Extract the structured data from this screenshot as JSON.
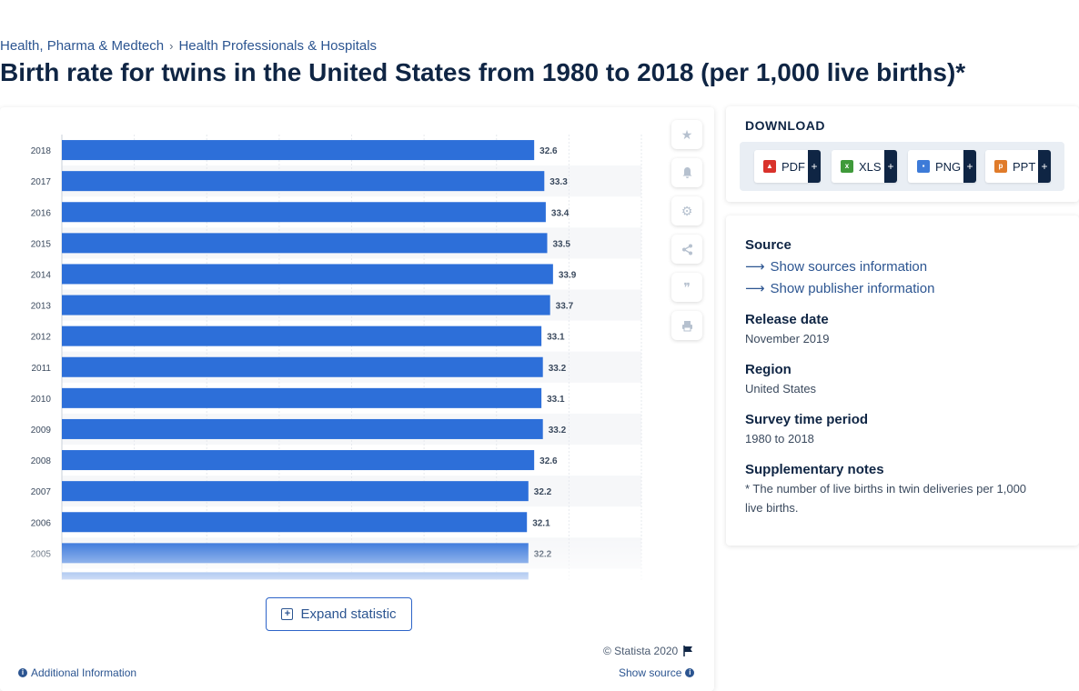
{
  "breadcrumb": {
    "item1": "Health, Pharma & Medtech",
    "item2": "Health Professionals & Hospitals",
    "separator": "›"
  },
  "page_title": "Birth rate for twins in the United States from 1980 to 2018 (per 1,000 live births)*",
  "chart_actions": {
    "expand_label": "Expand statistic",
    "copyright": "© Statista 2020",
    "additional_info": "Additional Information",
    "show_source": "Show source"
  },
  "tools": [
    "star-icon",
    "bell-icon",
    "gear-icon",
    "share-icon",
    "quote-icon",
    "print-icon"
  ],
  "download": {
    "title": "DOWNLOAD",
    "buttons": [
      {
        "label": "PDF",
        "icon": "pdf-file-icon",
        "color": "#d9322b",
        "plus": "+"
      },
      {
        "label": "XLS",
        "icon": "xls-file-icon",
        "color": "#3f9a3a",
        "plus": "+"
      },
      {
        "label": "PNG",
        "icon": "png-file-icon",
        "color": "#3d7bd8",
        "plus": "+"
      },
      {
        "label": "PPT",
        "icon": "ppt-file-icon",
        "color": "#e07b2a",
        "plus": "+"
      }
    ]
  },
  "info": {
    "source_label": "Source",
    "sources_link": "Show sources information",
    "publisher_link": "Show publisher information",
    "release_label": "Release date",
    "release_value": "November 2019",
    "region_label": "Region",
    "region_value": "United States",
    "survey_label": "Survey time period",
    "survey_value": "1980 to 2018",
    "notes_label": "Supplementary notes",
    "notes_value": "* The number of live births in twin deliveries per 1,000 live births."
  },
  "colors": {
    "bar": "#2d6fd9",
    "accent": "#2c5591",
    "text": "#0f2544"
  },
  "chart_data": {
    "type": "bar",
    "orientation": "horizontal",
    "title": "Birth rate for twins in the United States from 1980 to 2018 (per 1,000 live births)*",
    "categories": [
      "2018",
      "2017",
      "2016",
      "2015",
      "2014",
      "2013",
      "2012",
      "2011",
      "2010",
      "2009",
      "2008",
      "2007",
      "2006",
      "2005"
    ],
    "values": [
      32.6,
      33.3,
      33.4,
      33.5,
      33.9,
      33.7,
      33.1,
      33.2,
      33.1,
      33.2,
      32.6,
      32.2,
      32.1,
      32.2
    ],
    "xlim": [
      0,
      40
    ],
    "xlabel": "",
    "ylabel": "",
    "grid": true
  }
}
